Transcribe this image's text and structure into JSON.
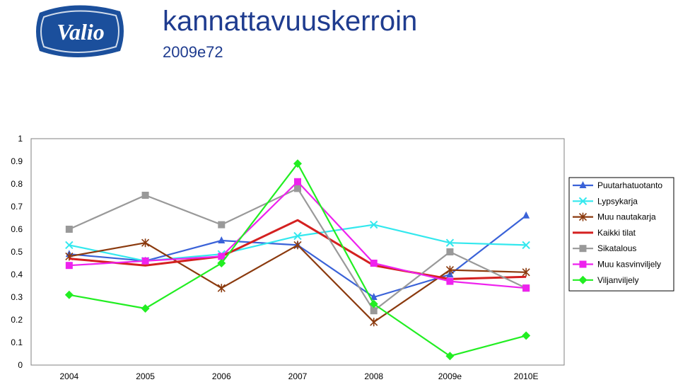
{
  "header": {
    "title": "kannattavuuskerroin",
    "subtitle": "2009e72",
    "logo_text": "Valio"
  },
  "colors": {
    "title": "#1f3c8f",
    "logo_bg": "#1b4f9c",
    "grid_frame": "#808080"
  },
  "chart_data": {
    "type": "line",
    "title": "",
    "xlabel": "",
    "ylabel": "",
    "ylim": [
      0,
      1
    ],
    "yticks": [
      "0",
      "0.1",
      "0.2",
      "0.3",
      "0.4",
      "0.5",
      "0.6",
      "0.7",
      "0.8",
      "0.9",
      "1"
    ],
    "categories": [
      "2004",
      "2005",
      "2006",
      "2007",
      "2008",
      "2009e",
      "2010E"
    ],
    "legend_position": "right",
    "series": [
      {
        "name": "Puutarhatuotanto",
        "color": "#3a62d8",
        "marker": "triangle",
        "values": [
          0.49,
          0.46,
          0.55,
          0.53,
          0.3,
          0.4,
          0.66
        ]
      },
      {
        "name": "Lypsykarja",
        "color": "#33e8ee",
        "marker": "x",
        "values": [
          0.53,
          0.46,
          0.49,
          0.57,
          0.62,
          0.54,
          0.53
        ]
      },
      {
        "name": "Muu nautakarja",
        "color": "#8b3a0e",
        "marker": "star",
        "values": [
          0.48,
          0.54,
          0.34,
          0.53,
          0.19,
          0.42,
          0.41
        ]
      },
      {
        "name": "Kaikki tilat",
        "color": "#d42020",
        "marker": "none",
        "values": [
          0.47,
          0.44,
          0.48,
          0.64,
          0.44,
          0.38,
          0.39
        ]
      },
      {
        "name": "Sikatalous",
        "color": "#999999",
        "marker": "square",
        "values": [
          0.6,
          0.75,
          0.62,
          0.78,
          0.24,
          0.5,
          0.34
        ]
      },
      {
        "name": "Muu kasvinviljely",
        "color": "#ee22ee",
        "marker": "square",
        "values": [
          0.44,
          0.46,
          0.48,
          0.81,
          0.45,
          0.37,
          0.34
        ]
      },
      {
        "name": "Viljanviljely",
        "color": "#22ee22",
        "marker": "diamond",
        "values": [
          0.31,
          0.25,
          0.45,
          0.89,
          0.27,
          0.04,
          0.13
        ]
      }
    ]
  }
}
